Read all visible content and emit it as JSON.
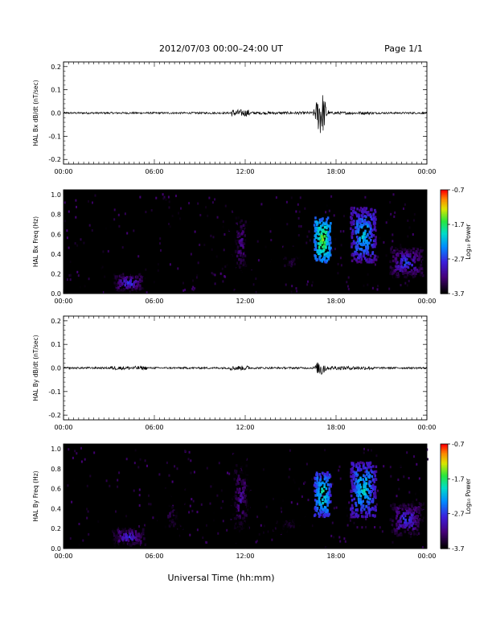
{
  "header": {
    "title": "2012/07/03  00:00–24:00 UT",
    "page": "Page 1/1"
  },
  "footer": {
    "xlabel": "Universal Time (hh:mm)"
  },
  "colors": {
    "background": "#ffffff",
    "spectrogram_background": "#000000",
    "trace": "#000000"
  },
  "chart_data": [
    {
      "type": "line",
      "ylabel": "HAL Bx dB/dt (nT/sec)",
      "xticks": [
        "00:00",
        "06:00",
        "12:00",
        "18:00",
        "00:00"
      ],
      "xlim_hours": [
        0,
        24
      ],
      "ylim": [
        -0.22,
        0.22
      ],
      "yticks": [
        "0.2",
        "0.1",
        "0.0",
        "-0.1",
        "-0.2"
      ],
      "ytick_values": [
        0.2,
        0.1,
        0.0,
        -0.1,
        -0.2
      ],
      "activity": [
        {
          "start_h": 0.0,
          "end_h": 11.0,
          "amplitude": 0.004
        },
        {
          "start_h": 11.0,
          "end_h": 12.3,
          "amplitude": 0.015
        },
        {
          "start_h": 12.3,
          "end_h": 16.5,
          "amplitude": 0.006
        },
        {
          "start_h": 16.5,
          "end_h": 17.5,
          "amplitude": 0.11
        },
        {
          "start_h": 17.5,
          "end_h": 20.5,
          "amplitude": 0.006
        },
        {
          "start_h": 20.5,
          "end_h": 24.0,
          "amplitude": 0.004
        }
      ]
    },
    {
      "type": "heatmap",
      "ylabel": "HAL Bx Freq (Hz)",
      "xticks": [
        "00:00",
        "06:00",
        "12:00",
        "18:00",
        "00:00"
      ],
      "xlim_hours": [
        0,
        24
      ],
      "ylim": [
        0.0,
        1.05
      ],
      "yticks": [
        "1.0",
        "0.8",
        "0.6",
        "0.4",
        "0.2",
        "0.0"
      ],
      "ytick_values": [
        1.0,
        0.8,
        0.6,
        0.4,
        0.2,
        0.0
      ],
      "colorbar": {
        "label": "Log₁₀ Power",
        "ticks": [
          "-0.7",
          "-1.7",
          "-2.7",
          "-3.7"
        ],
        "range": [
          -3.7,
          -0.7
        ]
      },
      "blobs": [
        {
          "t0": 3.2,
          "t1": 5.3,
          "f0": 0.0,
          "f1": 0.18,
          "level": -2.5
        },
        {
          "t0": 10.9,
          "t1": 12.4,
          "f0": 0.0,
          "f1": 1.0,
          "level": -3.0
        },
        {
          "t0": 13.5,
          "t1": 16.3,
          "f0": 0.15,
          "f1": 0.45,
          "level": -3.2
        },
        {
          "t0": 16.5,
          "t1": 17.6,
          "f0": 0.3,
          "f1": 0.75,
          "level": -1.3
        },
        {
          "t0": 18.9,
          "t1": 20.6,
          "f0": 0.3,
          "f1": 0.85,
          "level": -1.9
        },
        {
          "t0": 21.5,
          "t1": 23.7,
          "f0": 0.15,
          "f1": 0.45,
          "level": -2.4
        }
      ]
    },
    {
      "type": "line",
      "ylabel": "HAL By dB/dt (nT/sec)",
      "xticks": [
        "00:00",
        "06:00",
        "12:00",
        "18:00",
        "00:00"
      ],
      "xlim_hours": [
        0,
        24
      ],
      "ylim": [
        -0.22,
        0.22
      ],
      "yticks": [
        "0.2",
        "0.1",
        "0.0",
        "-0.1",
        "-0.2"
      ],
      "ytick_values": [
        0.2,
        0.1,
        0.0,
        -0.1,
        -0.2
      ],
      "activity": [
        {
          "start_h": 0.0,
          "end_h": 3.0,
          "amplitude": 0.004
        },
        {
          "start_h": 3.0,
          "end_h": 5.5,
          "amplitude": 0.008
        },
        {
          "start_h": 5.5,
          "end_h": 11.0,
          "amplitude": 0.004
        },
        {
          "start_h": 11.0,
          "end_h": 12.3,
          "amplitude": 0.01
        },
        {
          "start_h": 12.3,
          "end_h": 16.5,
          "amplitude": 0.004
        },
        {
          "start_h": 16.5,
          "end_h": 17.5,
          "amplitude": 0.04
        },
        {
          "start_h": 17.5,
          "end_h": 20.5,
          "amplitude": 0.008
        },
        {
          "start_h": 20.5,
          "end_h": 24.0,
          "amplitude": 0.004
        }
      ]
    },
    {
      "type": "heatmap",
      "ylabel": "HAL By Freq (Hz)",
      "xticks": [
        "00:00",
        "06:00",
        "12:00",
        "18:00",
        "00:00"
      ],
      "xlim_hours": [
        0,
        24
      ],
      "ylim": [
        0.0,
        1.05
      ],
      "yticks": [
        "1.0",
        "0.8",
        "0.6",
        "0.4",
        "0.2",
        "0.0"
      ],
      "ytick_values": [
        1.0,
        0.8,
        0.6,
        0.4,
        0.2,
        0.0
      ],
      "colorbar": {
        "label": "Log₁₀ Power",
        "ticks": [
          "-0.7",
          "-1.7",
          "-2.7",
          "-3.7"
        ],
        "range": [
          -3.7,
          -0.7
        ]
      },
      "blobs": [
        {
          "t0": 3.0,
          "t1": 5.5,
          "f0": 0.0,
          "f1": 0.2,
          "level": -2.6
        },
        {
          "t0": 6.0,
          "t1": 8.0,
          "f0": 0.0,
          "f1": 0.6,
          "level": -3.2
        },
        {
          "t0": 10.9,
          "t1": 12.4,
          "f0": 0.0,
          "f1": 1.0,
          "level": -2.9
        },
        {
          "t0": 13.5,
          "t1": 16.3,
          "f0": 0.1,
          "f1": 0.35,
          "level": -3.3
        },
        {
          "t0": 16.5,
          "t1": 17.6,
          "f0": 0.3,
          "f1": 0.75,
          "level": -1.6
        },
        {
          "t0": 18.9,
          "t1": 20.6,
          "f0": 0.3,
          "f1": 0.85,
          "level": -1.8
        },
        {
          "t0": 21.5,
          "t1": 23.7,
          "f0": 0.1,
          "f1": 0.45,
          "level": -2.5
        }
      ]
    }
  ]
}
